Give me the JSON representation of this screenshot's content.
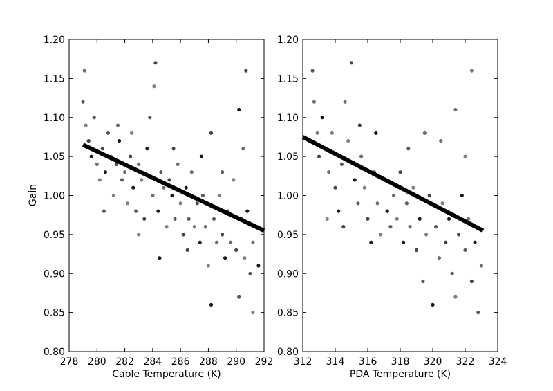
{
  "chart_data": [
    {
      "type": "scatter",
      "title": "",
      "xlabel": "Cable Temperature (K)",
      "ylabel": "Gain",
      "xlim": [
        278,
        292
      ],
      "ylim": [
        0.8,
        1.2
      ],
      "x_ticks": [
        278,
        280,
        282,
        284,
        286,
        288,
        290,
        292
      ],
      "y_ticks": [
        0.8,
        0.85,
        0.9,
        0.95,
        1.0,
        1.05,
        1.1,
        1.15,
        1.2
      ],
      "x_tick_labels": [
        "278",
        "280",
        "282",
        "284",
        "286",
        "288",
        "290",
        "292"
      ],
      "y_tick_labels": [
        "0.80",
        "0.85",
        "0.90",
        "0.95",
        "1.00",
        "1.05",
        "1.10",
        "1.15",
        "1.20"
      ],
      "grid": false,
      "point_colors": [
        "#5a5a5a",
        "#6e6e6e",
        "#808080",
        "#444444",
        "#1a1a1a"
      ],
      "fit_line": {
        "x": [
          279.0,
          292.0
        ],
        "y": [
          1.065,
          0.955
        ],
        "color": "#000000"
      },
      "points": [
        [
          279.0,
          1.12
        ],
        [
          279.1,
          1.16
        ],
        [
          279.2,
          1.09
        ],
        [
          279.4,
          1.07
        ],
        [
          279.6,
          1.05
        ],
        [
          279.8,
          1.1
        ],
        [
          280.0,
          1.04
        ],
        [
          280.2,
          1.02
        ],
        [
          280.4,
          1.06
        ],
        [
          280.6,
          1.03
        ],
        [
          280.8,
          1.08
        ],
        [
          281.0,
          1.05
        ],
        [
          281.2,
          1.0
        ],
        [
          281.4,
          1.04
        ],
        [
          281.6,
          1.07
        ],
        [
          281.8,
          1.02
        ],
        [
          282.0,
          1.03
        ],
        [
          282.2,
          0.99
        ],
        [
          282.4,
          1.05
        ],
        [
          282.6,
          1.01
        ],
        [
          282.8,
          0.98
        ],
        [
          283.0,
          1.04
        ],
        [
          283.2,
          1.02
        ],
        [
          283.4,
          0.97
        ],
        [
          283.6,
          1.06
        ],
        [
          283.8,
          1.1
        ],
        [
          284.0,
          1.0
        ],
        [
          284.1,
          1.14
        ],
        [
          284.2,
          1.17
        ],
        [
          284.4,
          0.98
        ],
        [
          284.6,
          1.03
        ],
        [
          284.8,
          1.01
        ],
        [
          285.0,
          0.96
        ],
        [
          285.2,
          1.02
        ],
        [
          285.4,
          1.0
        ],
        [
          285.6,
          0.97
        ],
        [
          285.8,
          1.04
        ],
        [
          286.0,
          0.99
        ],
        [
          286.2,
          0.95
        ],
        [
          286.4,
          1.01
        ],
        [
          286.6,
          0.97
        ],
        [
          286.8,
          1.03
        ],
        [
          287.0,
          0.96
        ],
        [
          287.2,
          0.99
        ],
        [
          287.4,
          0.94
        ],
        [
          287.6,
          1.0
        ],
        [
          287.8,
          0.96
        ],
        [
          288.0,
          0.91
        ],
        [
          288.2,
          1.08
        ],
        [
          288.2,
          0.86
        ],
        [
          288.4,
          0.97
        ],
        [
          288.6,
          0.94
        ],
        [
          288.8,
          1.0
        ],
        [
          289.0,
          0.95
        ],
        [
          289.2,
          0.92
        ],
        [
          289.4,
          0.98
        ],
        [
          289.6,
          0.94
        ],
        [
          289.8,
          1.02
        ],
        [
          290.0,
          0.93
        ],
        [
          290.2,
          1.11
        ],
        [
          290.2,
          0.87
        ],
        [
          290.4,
          0.97
        ],
        [
          290.6,
          0.92
        ],
        [
          290.7,
          1.16
        ],
        [
          290.8,
          0.98
        ],
        [
          291.0,
          0.9
        ],
        [
          291.2,
          0.94
        ],
        [
          291.2,
          0.85
        ],
        [
          291.4,
          0.96
        ],
        [
          291.6,
          0.91
        ],
        [
          280.5,
          0.98
        ],
        [
          281.5,
          1.09
        ],
        [
          283.0,
          0.95
        ],
        [
          285.5,
          1.06
        ],
        [
          287.5,
          1.05
        ],
        [
          289.0,
          1.03
        ],
        [
          290.5,
          1.06
        ],
        [
          282.5,
          1.08
        ],
        [
          286.5,
          0.93
        ],
        [
          284.5,
          0.92
        ]
      ]
    },
    {
      "type": "scatter",
      "title": "",
      "xlabel": "PDA Temperature (K)",
      "ylabel": "",
      "xlim": [
        312,
        324
      ],
      "ylim": [
        0.8,
        1.2
      ],
      "x_ticks": [
        312,
        314,
        316,
        318,
        320,
        322,
        324
      ],
      "y_ticks": [
        0.8,
        0.85,
        0.9,
        0.95,
        1.0,
        1.05,
        1.1,
        1.15,
        1.2
      ],
      "x_tick_labels": [
        "312",
        "314",
        "316",
        "318",
        "320",
        "322",
        "324"
      ],
      "y_tick_labels": [
        "0.80",
        "0.85",
        "0.90",
        "0.95",
        "1.00",
        "1.05",
        "1.10",
        "1.15",
        "1.20"
      ],
      "grid": false,
      "point_colors": [
        "#5a5a5a",
        "#6e6e6e",
        "#808080",
        "#444444",
        "#1a1a1a"
      ],
      "fit_line": {
        "x": [
          312.0,
          323.1
        ],
        "y": [
          1.075,
          0.955
        ],
        "color": "#000000"
      },
      "points": [
        [
          312.6,
          1.16
        ],
        [
          312.7,
          1.12
        ],
        [
          312.9,
          1.08
        ],
        [
          313.0,
          1.05
        ],
        [
          313.2,
          1.1
        ],
        [
          313.4,
          1.06
        ],
        [
          313.6,
          1.03
        ],
        [
          313.8,
          1.08
        ],
        [
          314.0,
          1.01
        ],
        [
          314.2,
          0.98
        ],
        [
          314.4,
          1.04
        ],
        [
          314.6,
          1.12
        ],
        [
          314.8,
          1.07
        ],
        [
          315.0,
          1.17
        ],
        [
          315.2,
          1.02
        ],
        [
          315.4,
          0.99
        ],
        [
          315.6,
          1.05
        ],
        [
          315.8,
          1.01
        ],
        [
          316.0,
          0.97
        ],
        [
          316.2,
          0.94
        ],
        [
          316.4,
          1.03
        ],
        [
          316.6,
          0.99
        ],
        [
          316.8,
          0.95
        ],
        [
          317.0,
          1.02
        ],
        [
          317.2,
          0.98
        ],
        [
          317.4,
          0.96
        ],
        [
          317.6,
          1.0
        ],
        [
          317.8,
          0.97
        ],
        [
          318.0,
          1.03
        ],
        [
          318.2,
          0.94
        ],
        [
          318.4,
          0.99
        ],
        [
          318.6,
          0.96
        ],
        [
          318.8,
          1.01
        ],
        [
          319.0,
          0.93
        ],
        [
          319.2,
          0.97
        ],
        [
          319.4,
          0.89
        ],
        [
          319.5,
          1.08
        ],
        [
          319.6,
          0.95
        ],
        [
          319.8,
          1.0
        ],
        [
          320.0,
          0.86
        ],
        [
          320.2,
          0.96
        ],
        [
          320.4,
          0.92
        ],
        [
          320.6,
          0.99
        ],
        [
          320.8,
          0.94
        ],
        [
          321.0,
          0.97
        ],
        [
          321.2,
          0.9
        ],
        [
          321.4,
          1.11
        ],
        [
          321.4,
          0.87
        ],
        [
          321.6,
          0.95
        ],
        [
          321.8,
          1.0
        ],
        [
          322.0,
          0.93
        ],
        [
          322.2,
          0.97
        ],
        [
          322.4,
          1.16
        ],
        [
          322.4,
          0.89
        ],
        [
          322.6,
          0.94
        ],
        [
          322.8,
          0.85
        ],
        [
          323.0,
          0.91
        ],
        [
          313.5,
          0.97
        ],
        [
          314.5,
          0.96
        ],
        [
          316.5,
          1.08
        ],
        [
          318.5,
          1.06
        ],
        [
          320.5,
          1.07
        ],
        [
          322.0,
          1.05
        ],
        [
          315.5,
          1.09
        ]
      ]
    }
  ]
}
